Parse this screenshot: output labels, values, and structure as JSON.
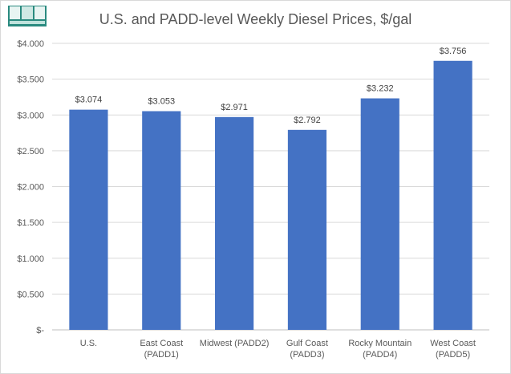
{
  "logo": {
    "name": "fmn-logo"
  },
  "chart_data": {
    "type": "bar",
    "title": "U.S. and PADD-level Weekly Diesel Prices, $/gal",
    "categories": [
      [
        "U.S."
      ],
      [
        "East Coast",
        "(PADD1)"
      ],
      [
        "Midwest (PADD2)"
      ],
      [
        "Gulf Coast",
        "(PADD3)"
      ],
      [
        "Rocky Mountain",
        "(PADD4)"
      ],
      [
        "West Coast",
        "(PADD5)"
      ]
    ],
    "values": [
      3.074,
      3.053,
      2.971,
      2.792,
      3.232,
      3.756
    ],
    "data_labels": [
      "$3.074",
      "$3.053",
      "$2.971",
      "$2.792",
      "$3.232",
      "$3.756"
    ],
    "yticks": [
      "$-",
      "$0.500",
      "$1.000",
      "$1.500",
      "$2.000",
      "$2.500",
      "$3.000",
      "$3.500",
      "$4.000"
    ],
    "ylim": [
      0,
      4
    ],
    "grid": true,
    "bar_color": "#4472c4",
    "grid_color": "#d9d9d9"
  }
}
